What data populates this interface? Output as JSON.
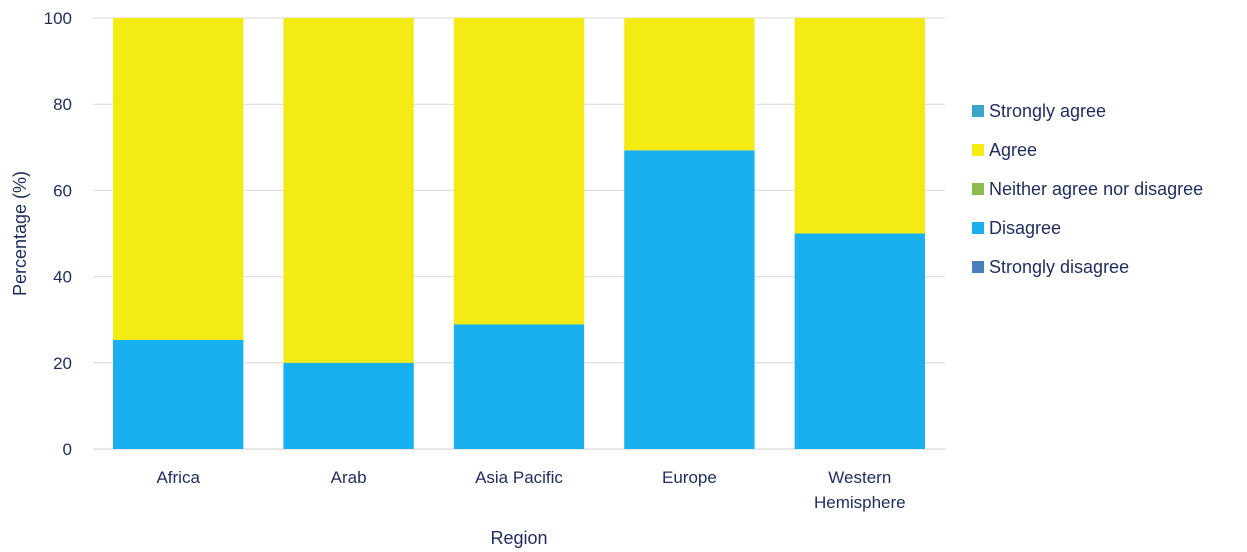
{
  "chart_data": {
    "type": "bar",
    "stacked": true,
    "categories": [
      [
        "Africa"
      ],
      [
        "Arab"
      ],
      [
        "Asia Pacific"
      ],
      [
        "Europe"
      ],
      [
        "Western",
        "Hemisphere"
      ]
    ],
    "series": [
      {
        "name": "Strongly disagree",
        "color": "#4a7ebb",
        "values": [
          0,
          0,
          0,
          0,
          0
        ]
      },
      {
        "name": "Disagree",
        "color": "#19b0ef",
        "values": [
          25.3,
          20,
          28.9,
          69.3,
          50
        ]
      },
      {
        "name": "Neither agree nor disagree",
        "color": "#8cbb4e",
        "values": [
          0,
          0,
          0,
          0,
          0
        ]
      },
      {
        "name": "Agree",
        "color": "#f4ea14",
        "values": [
          74.7,
          80,
          71.1,
          30.7,
          50
        ]
      },
      {
        "name": "Strongly agree",
        "color": "#3aa4c9",
        "values": [
          0,
          0,
          0,
          0,
          0
        ]
      }
    ],
    "legend_order": [
      "Strongly agree",
      "Agree",
      "Neither agree nor disagree",
      "Disagree",
      "Strongly disagree"
    ],
    "title": "",
    "xlabel": "Region",
    "ylabel": "Percentage (%)",
    "ylim": [
      0,
      100
    ],
    "yticks": [
      0,
      20,
      40,
      60,
      80,
      100
    ],
    "grid": true,
    "legend_position": "right"
  }
}
